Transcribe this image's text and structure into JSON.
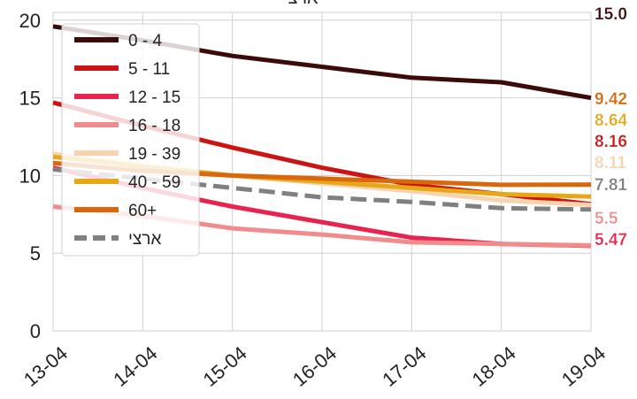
{
  "chart_data": {
    "type": "line",
    "title": "ארצי",
    "xlabel": "",
    "ylabel": "",
    "x": [
      "13-04",
      "14-04",
      "15-04",
      "16-04",
      "17-04",
      "18-04",
      "19-04"
    ],
    "ylim": [
      0,
      20.5
    ],
    "yticks": [
      0,
      5,
      10,
      15,
      20
    ],
    "grid": true,
    "legend_position": "top-left",
    "series": [
      {
        "name": "0 - 4",
        "color": "#3d0a0a",
        "dash": false,
        "values": [
          19.6,
          18.7,
          17.7,
          17.0,
          16.3,
          16.0,
          15.0
        ],
        "end_label": "15.0"
      },
      {
        "name": "5 - 11",
        "color": "#cc1414",
        "dash": false,
        "values": [
          14.7,
          13.2,
          11.8,
          10.5,
          9.4,
          8.8,
          8.16
        ],
        "end_label": "8.16"
      },
      {
        "name": "12 - 15",
        "color": "#e8234f",
        "dash": false,
        "values": [
          10.5,
          9.2,
          8.0,
          7.0,
          6.0,
          5.6,
          5.47
        ],
        "end_label": "5.47"
      },
      {
        "name": "16 - 18",
        "color": "#f28b8b",
        "dash": false,
        "values": [
          8.0,
          7.4,
          6.6,
          6.2,
          5.7,
          5.6,
          5.5
        ],
        "end_label": "5.5"
      },
      {
        "name": "19 - 39",
        "color": "#f9d2ae",
        "dash": false,
        "values": [
          11.4,
          10.6,
          10.0,
          9.5,
          9.0,
          8.4,
          8.11
        ],
        "end_label": "8.11"
      },
      {
        "name": "40 - 59",
        "color": "#e6a817",
        "dash": false,
        "values": [
          11.2,
          10.6,
          10.0,
          9.6,
          9.2,
          8.8,
          8.64
        ],
        "end_label": "8.64"
      },
      {
        "name": "60+",
        "color": "#d9670b",
        "dash": false,
        "values": [
          10.8,
          10.3,
          10.0,
          9.8,
          9.6,
          9.4,
          9.42
        ],
        "end_label": "9.42"
      },
      {
        "name": "ארצי",
        "color": "#808080",
        "dash": true,
        "values": [
          10.4,
          9.8,
          9.2,
          8.6,
          8.3,
          7.9,
          7.81
        ],
        "end_label": "7.81"
      }
    ]
  }
}
